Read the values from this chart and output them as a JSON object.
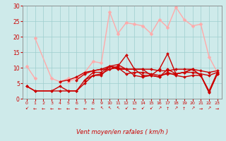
{
  "xlabel": "Vent moyen/en rafales ( km/h )",
  "xlim": [
    -0.5,
    23.5
  ],
  "ylim": [
    0,
    30
  ],
  "yticks": [
    0,
    5,
    10,
    15,
    20,
    25,
    30
  ],
  "xticks": [
    0,
    1,
    2,
    3,
    4,
    5,
    6,
    7,
    8,
    9,
    10,
    11,
    12,
    13,
    14,
    15,
    16,
    17,
    18,
    19,
    20,
    21,
    22,
    23
  ],
  "bg_color": "#ceeaea",
  "grid_color": "#9ecece",
  "lines": [
    {
      "x": [
        0,
        1
      ],
      "y": [
        10.5,
        6.5
      ],
      "color": "#ffaaaa",
      "lw": 1.0,
      "marker": "D",
      "ms": 2.5
    },
    {
      "x": [
        1,
        3,
        4,
        5
      ],
      "y": [
        19.5,
        6.5,
        5.5,
        6.5
      ],
      "color": "#ffaaaa",
      "lw": 1.0,
      "marker": "D",
      "ms": 2.5
    },
    {
      "x": [
        5,
        6,
        7,
        8,
        9,
        10,
        11,
        12,
        13,
        14,
        15,
        16,
        17,
        18,
        19,
        20,
        21,
        22,
        23
      ],
      "y": [
        5.5,
        6.5,
        8.5,
        12.0,
        11.5,
        28.0,
        21.0,
        24.5,
        24.0,
        23.5,
        21.0,
        25.5,
        23.0,
        29.5,
        25.5,
        23.5,
        24.0,
        13.5,
        8.5
      ],
      "color": "#ffaaaa",
      "lw": 1.0,
      "marker": "D",
      "ms": 2.5
    },
    {
      "x": [
        0,
        1,
        3,
        4,
        5,
        6,
        7,
        8,
        9,
        10,
        11,
        12,
        13,
        14,
        15,
        16,
        17,
        18,
        19,
        20,
        21,
        22,
        23
      ],
      "y": [
        4.0,
        2.5,
        2.5,
        4.0,
        2.5,
        2.5,
        6.0,
        8.5,
        8.5,
        10.5,
        11.0,
        9.5,
        9.5,
        9.5,
        7.5,
        7.0,
        9.5,
        8.0,
        8.5,
        9.5,
        7.5,
        2.0,
        8.0
      ],
      "color": "#cc0000",
      "lw": 1.0,
      "marker": "D",
      "ms": 2.0
    },
    {
      "x": [
        0,
        1,
        3,
        4,
        5,
        6,
        7,
        8,
        9,
        10,
        11,
        12,
        13,
        14,
        15,
        16,
        17,
        18,
        19,
        20,
        21,
        22,
        23
      ],
      "y": [
        4.0,
        2.5,
        2.5,
        2.5,
        2.5,
        2.5,
        5.0,
        7.5,
        7.5,
        10.5,
        9.5,
        9.5,
        7.5,
        7.0,
        7.5,
        7.0,
        8.5,
        7.5,
        7.0,
        7.5,
        7.5,
        2.0,
        8.0
      ],
      "color": "#cc0000",
      "lw": 1.0,
      "marker": "D",
      "ms": 2.0
    },
    {
      "x": [
        6,
        7,
        8,
        9,
        10,
        11,
        12,
        13,
        14,
        15,
        16,
        17,
        18,
        19,
        20,
        21,
        22,
        23
      ],
      "y": [
        6.0,
        8.0,
        9.0,
        9.5,
        10.5,
        10.0,
        8.0,
        8.5,
        8.5,
        8.0,
        7.5,
        8.0,
        8.0,
        8.5,
        8.5,
        8.0,
        7.5,
        8.5
      ],
      "color": "#cc0000",
      "lw": 1.0,
      "marker": "D",
      "ms": 2.0
    },
    {
      "x": [
        4,
        5,
        6,
        7,
        8,
        9,
        10,
        11,
        12,
        13,
        14,
        15,
        16,
        17,
        18,
        19,
        20,
        21,
        22,
        23
      ],
      "y": [
        5.5,
        6.0,
        7.0,
        8.5,
        9.0,
        9.5,
        9.5,
        10.0,
        9.5,
        9.5,
        9.5,
        9.5,
        9.0,
        9.0,
        9.5,
        9.5,
        9.5,
        9.0,
        8.5,
        9.0
      ],
      "color": "#cc0000",
      "lw": 1.0,
      "marker": "D",
      "ms": 2.0
    },
    {
      "x": [
        7,
        8,
        9,
        10,
        11,
        12,
        13,
        14,
        15,
        16,
        17,
        18,
        19,
        20,
        21,
        22,
        23
      ],
      "y": [
        6.0,
        7.5,
        8.0,
        9.5,
        10.5,
        14.0,
        9.5,
        7.5,
        7.5,
        9.5,
        14.5,
        8.0,
        8.5,
        9.5,
        7.5,
        2.5,
        8.5
      ],
      "color": "#cc0000",
      "lw": 1.0,
      "marker": "D",
      "ms": 2.0
    }
  ],
  "wind_arrows": [
    [
      0,
      "↙"
    ],
    [
      1,
      "←"
    ],
    [
      2,
      "←"
    ],
    [
      3,
      "←"
    ],
    [
      4,
      "←"
    ],
    [
      5,
      "←"
    ],
    [
      6,
      "←"
    ],
    [
      7,
      "←"
    ],
    [
      8,
      "←"
    ],
    [
      9,
      "↖"
    ],
    [
      10,
      "↖"
    ],
    [
      11,
      "↖"
    ],
    [
      12,
      "↙"
    ],
    [
      13,
      "←"
    ],
    [
      14,
      "↙"
    ],
    [
      15,
      "↙"
    ],
    [
      16,
      "↗"
    ],
    [
      17,
      "↑"
    ],
    [
      18,
      "↗"
    ],
    [
      19,
      "↑"
    ],
    [
      20,
      "↗"
    ],
    [
      21,
      "→"
    ],
    [
      22,
      "↗"
    ],
    [
      23,
      "→"
    ]
  ]
}
